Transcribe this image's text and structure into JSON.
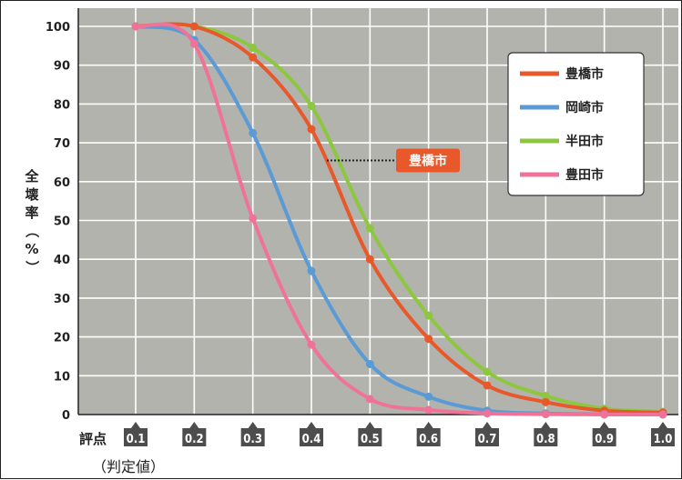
{
  "chart_data": {
    "type": "line",
    "ylabel": "全壊率（%）",
    "xlabel": "評点",
    "xlabel_sub": "（判定値）",
    "ylim": [
      0,
      100
    ],
    "yticks": [
      0,
      10,
      20,
      30,
      40,
      50,
      60,
      70,
      80,
      90,
      100
    ],
    "x": [
      0.1,
      0.2,
      0.3,
      0.4,
      0.5,
      0.6,
      0.7,
      0.8,
      0.9,
      1.0
    ],
    "xtick_labels": [
      "0.1",
      "0.2",
      "0.3",
      "0.4",
      "0.5",
      "0.6",
      "0.7",
      "0.8",
      "0.9",
      "1.0"
    ],
    "grid": true,
    "legend_position": "top-right",
    "series": [
      {
        "name": "豊橋市",
        "color": "#e8582a",
        "values": [
          100,
          100,
          92,
          73.5,
          40,
          19.5,
          7.5,
          3.2,
          1.0,
          0.5
        ]
      },
      {
        "name": "岡崎市",
        "color": "#5b9bd5",
        "values": [
          100,
          96.5,
          72.5,
          37,
          13,
          4.6,
          1.0,
          0.3,
          0.1,
          0.0
        ]
      },
      {
        "name": "半田市",
        "color": "#8dc63f",
        "values": [
          100,
          100,
          94.5,
          79.5,
          48,
          25.5,
          11,
          4.8,
          1.5,
          0.7
        ]
      },
      {
        "name": "豊田市",
        "color": "#ef7399",
        "values": [
          100,
          95.5,
          50.5,
          18,
          4,
          1.2,
          0.3,
          0.1,
          0.0,
          0.0
        ]
      }
    ],
    "annotation": {
      "text": "豊橋市",
      "color": "#e8582a",
      "x": 0.42,
      "y": 65
    }
  },
  "colors": {
    "plot_bg": "#b3b3ae",
    "grid_line": "#ffffff",
    "axis_line": "#222222",
    "tick_box": "#4d4d4d"
  }
}
